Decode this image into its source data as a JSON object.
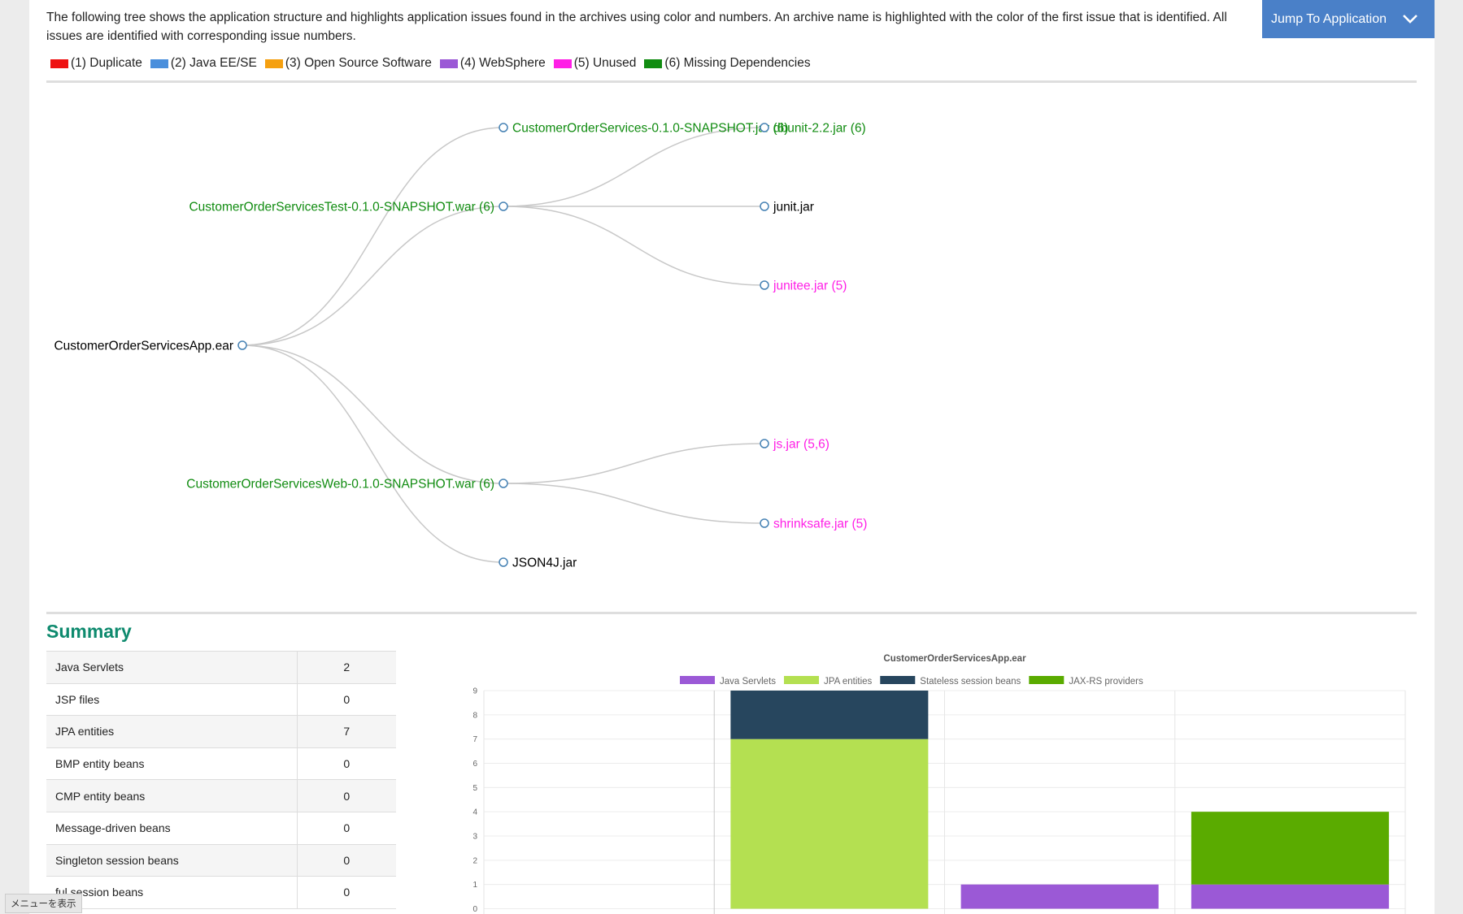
{
  "intro_text": "The following tree shows the application structure and highlights application issues found in the archives using color and numbers. An archive name is highlighted with the color of the first issue that is identified. All issues are identified with corresponding issue numbers.",
  "jump_button": {
    "label": "Jump To Application",
    "icon": "chevron-down-icon"
  },
  "legend": [
    {
      "label": "(1) Duplicate",
      "color": "#ee1111"
    },
    {
      "label": "(2) Java EE/SE",
      "color": "#4a8fdc"
    },
    {
      "label": "(3) Open Source Software",
      "color": "#f5a010"
    },
    {
      "label": "(4) WebSphere",
      "color": "#9b59d6"
    },
    {
      "label": "(5) Unused",
      "color": "#ff1fe6"
    },
    {
      "label": "(6) Missing Dependencies",
      "color": "#118c11"
    }
  ],
  "tree": {
    "root": {
      "label": "CustomerOrderServicesApp.ear",
      "color": "#000000"
    },
    "children": [
      {
        "label": "CustomerOrderServices-0.1.0-SNAPSHOT.jar (6)",
        "color": "#118c11",
        "children": []
      },
      {
        "label": "CustomerOrderServicesTest-0.1.0-SNAPSHOT.war (6)",
        "color": "#118c11",
        "children": [
          {
            "label": "dbunit-2.2.jar (6)",
            "color": "#118c11"
          },
          {
            "label": "junit.jar",
            "color": "#000000"
          },
          {
            "label": "junitee.jar (5)",
            "color": "#ff1fe6"
          }
        ]
      },
      {
        "label": "CustomerOrderServicesWeb-0.1.0-SNAPSHOT.war (6)",
        "color": "#118c11",
        "children": [
          {
            "label": "js.jar (5,6)",
            "color": "#ff1fe6"
          },
          {
            "label": "shrinksafe.jar (5)",
            "color": "#ff1fe6"
          }
        ]
      },
      {
        "label": "JSON4J.jar",
        "color": "#000000",
        "children": []
      }
    ]
  },
  "summary": {
    "title": "Summary",
    "rows": [
      {
        "label": "Java Servlets",
        "value": "2"
      },
      {
        "label": "JSP files",
        "value": "0"
      },
      {
        "label": "JPA entities",
        "value": "7"
      },
      {
        "label": "BMP entity beans",
        "value": "0"
      },
      {
        "label": "CMP entity beans",
        "value": "0"
      },
      {
        "label": "Message-driven beans",
        "value": "0"
      },
      {
        "label": "Singleton session beans",
        "value": "0"
      },
      {
        "label": "ful session beans",
        "value": "0"
      }
    ]
  },
  "chart_data": {
    "type": "bar",
    "stacked": true,
    "title": "CustomerOrderServicesApp.ear",
    "legend_position": "top",
    "grid": true,
    "ylim": [
      0,
      9
    ],
    "yticks": [
      9,
      8,
      7,
      6,
      5,
      4,
      3,
      2,
      1,
      0
    ],
    "categories": [
      "",
      "",
      "",
      ""
    ],
    "series": [
      {
        "name": "Java Servlets",
        "color": "#9b59d6",
        "values": [
          0,
          0,
          1,
          1
        ]
      },
      {
        "name": "JPA entities",
        "color": "#b4e051",
        "values": [
          0,
          7,
          0,
          0
        ]
      },
      {
        "name": "Stateless session beans",
        "color": "#27465e",
        "values": [
          0,
          2,
          0,
          0
        ]
      },
      {
        "name": "JAX-RS providers",
        "color": "#5aab00",
        "values": [
          0,
          0,
          0,
          3
        ]
      }
    ]
  },
  "menu_tag": "メニューを表示"
}
